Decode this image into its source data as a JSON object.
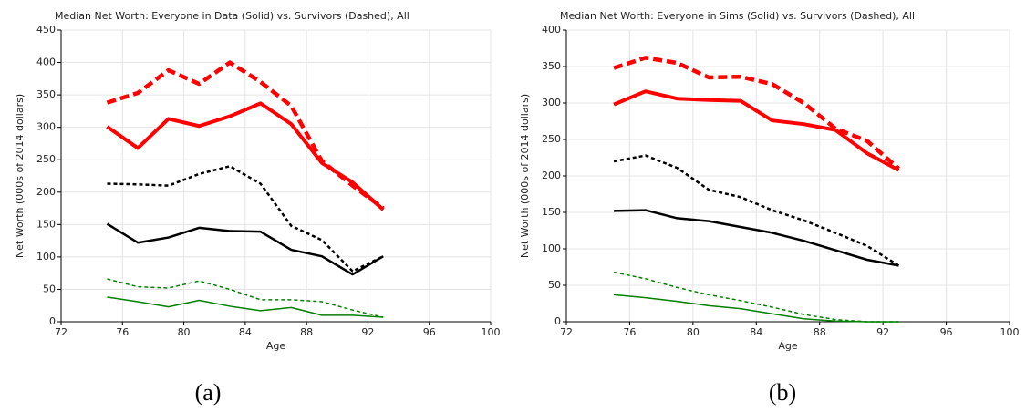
{
  "chart_data": [
    {
      "type": "line",
      "title": "Median Net Worth: Everyone in Data (Solid) vs. Survivors (Dashed), All",
      "x_label": "Age",
      "y_label": "Net Worth (000s of 2014 dollars)",
      "caption": "(a)",
      "x": [
        75,
        77,
        79,
        81,
        83,
        85,
        87,
        89,
        91,
        93
      ],
      "series": [
        {
          "color": "#ff0000",
          "dashed": true,
          "values": [
            338,
            353,
            388,
            367,
            400,
            370,
            333,
            248,
            210,
            175
          ]
        },
        {
          "color": "#ff0000",
          "dashed": false,
          "values": [
            301,
            268,
            313,
            302,
            317,
            337,
            305,
            245,
            215,
            173
          ]
        },
        {
          "color": "#000000",
          "dashed": true,
          "values": [
            213,
            212,
            210,
            228,
            240,
            213,
            148,
            126,
            78,
            101
          ]
        },
        {
          "color": "#000000",
          "dashed": false,
          "values": [
            151,
            122,
            130,
            145,
            140,
            139,
            111,
            101,
            73,
            101
          ]
        },
        {
          "color": "#008000",
          "dashed": true,
          "values": [
            66,
            54,
            52,
            63,
            50,
            34,
            34,
            31,
            18,
            7
          ]
        },
        {
          "color": "#008000",
          "dashed": false,
          "values": [
            38,
            31,
            23,
            33,
            24,
            17,
            22,
            10,
            10,
            7
          ]
        }
      ],
      "xlim": [
        72,
        100
      ],
      "xticks": [
        72,
        76,
        80,
        84,
        88,
        92,
        96,
        100
      ],
      "ylim": [
        0,
        450
      ],
      "yticks": [
        0,
        50,
        100,
        150,
        200,
        250,
        300,
        350,
        400,
        450
      ],
      "grid": true
    },
    {
      "type": "line",
      "title": "Median Net Worth: Everyone in Sims (Solid) vs. Survivors (Dashed), All",
      "x_label": "Age",
      "y_label": "Net Worth (000s of 2014 dollars)",
      "caption": "(b)",
      "x": [
        75,
        77,
        79,
        81,
        83,
        85,
        87,
        89,
        91,
        93
      ],
      "series": [
        {
          "color": "#ff0000",
          "dashed": true,
          "values": [
            348,
            362,
            355,
            335,
            336,
            326,
            300,
            265,
            248,
            210
          ]
        },
        {
          "color": "#ff0000",
          "dashed": false,
          "values": [
            298,
            316,
            306,
            304,
            303,
            276,
            271,
            263,
            231,
            208
          ]
        },
        {
          "color": "#000000",
          "dashed": true,
          "values": [
            220,
            228,
            211,
            181,
            171,
            153,
            139,
            122,
            104,
            77
          ]
        },
        {
          "color": "#000000",
          "dashed": false,
          "values": [
            152,
            153,
            142,
            138,
            130,
            122,
            111,
            98,
            85,
            77
          ]
        },
        {
          "color": "#008000",
          "dashed": true,
          "values": [
            68,
            59,
            47,
            37,
            29,
            20,
            10,
            3,
            0,
            0
          ]
        },
        {
          "color": "#008000",
          "dashed": false,
          "values": [
            37,
            33,
            28,
            22,
            18,
            11,
            4,
            1,
            0,
            0
          ]
        }
      ],
      "xlim": [
        72,
        100
      ],
      "xticks": [
        72,
        76,
        80,
        84,
        88,
        92,
        96,
        100
      ],
      "ylim": [
        0,
        400
      ],
      "yticks": [
        0,
        50,
        100,
        150,
        200,
        250,
        300,
        350,
        400
      ],
      "grid": true
    }
  ]
}
